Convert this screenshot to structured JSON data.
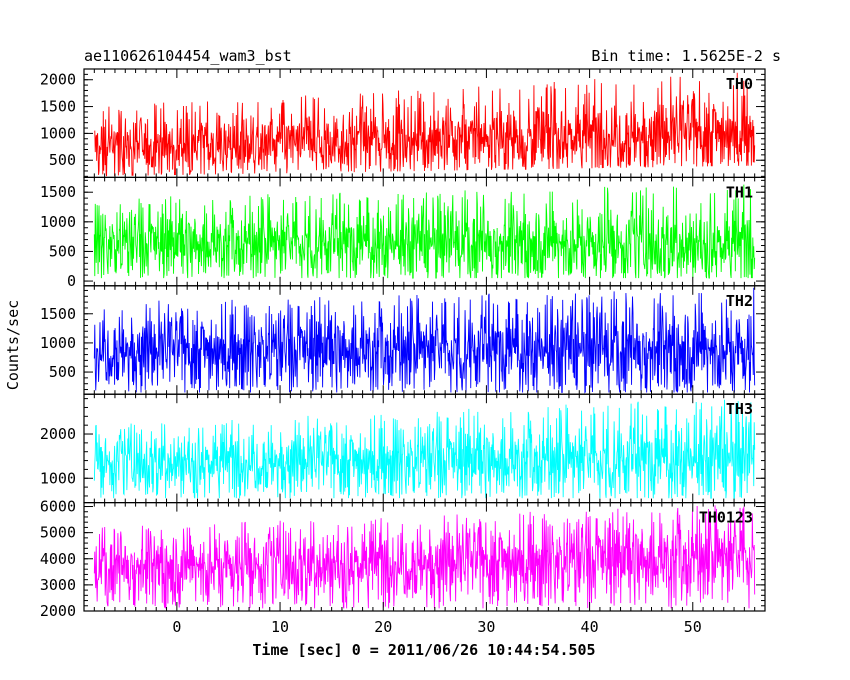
{
  "header": {
    "title": "ae110626104454_wam3_bst",
    "bin_time": "Bin time: 1.5625E-2 s"
  },
  "chart_data": {
    "type": "line",
    "title": "ae110626104454_wam3_bst",
    "xlabel": "Time [sec] 0 = 2011/06/26 10:44:54.505",
    "ylabel": "Counts/sec",
    "xlim": [
      -9,
      57
    ],
    "x_range_data": [
      -8,
      56
    ],
    "xticks": [
      0,
      10,
      20,
      30,
      40,
      50
    ],
    "xticks_text": [
      "0",
      "10",
      "20",
      "30",
      "40",
      "50"
    ],
    "panels": [
      {
        "name": "TH0",
        "color": "#ff0000",
        "ylim": [
          180,
          2200
        ],
        "yticks": [
          500,
          1000,
          1500,
          2000
        ],
        "yticks_text": [
          "500",
          "1000",
          "1500",
          "2000"
        ],
        "trend_x": [
          -8,
          56
        ],
        "trend_mean": [
          750,
          1050
        ],
        "low": [
          200,
          400
        ],
        "high": [
          1500,
          2200
        ]
      },
      {
        "name": "TH1",
        "color": "#00ff00",
        "ylim": [
          -80,
          1750
        ],
        "yticks": [
          0,
          500,
          1000,
          1500
        ],
        "yticks_text": [
          "0",
          "500",
          "1000",
          "1500"
        ],
        "trend_x": [
          -8,
          56
        ],
        "trend_mean": [
          650,
          650
        ],
        "low": [
          50,
          50
        ],
        "high": [
          1400,
          1650
        ]
      },
      {
        "name": "TH2",
        "color": "#0000ff",
        "ylim": [
          120,
          1980
        ],
        "yticks": [
          500,
          1000,
          1500
        ],
        "yticks_text": [
          "500",
          "1000",
          "1500"
        ],
        "trend_x": [
          -8,
          56
        ],
        "trend_mean": [
          900,
          900
        ],
        "low": [
          150,
          150
        ],
        "high": [
          1700,
          1950
        ]
      },
      {
        "name": "TH3",
        "color": "#00ffff",
        "ylim": [
          450,
          2900
        ],
        "yticks": [
          1000,
          2000
        ],
        "yticks_text": [
          "1000",
          "2000"
        ],
        "trend_x": [
          -8,
          56
        ],
        "trend_mean": [
          1400,
          1450
        ],
        "low": [
          550,
          550
        ],
        "high": [
          2200,
          2850
        ]
      },
      {
        "name": "TH0123",
        "color": "#ff00ff",
        "ylim": [
          2000,
          6150
        ],
        "yticks": [
          2000,
          3000,
          4000,
          5000,
          6000
        ],
        "yticks_text": [
          "2000",
          "3000",
          "4000",
          "5000",
          "6000"
        ],
        "trend_x": [
          -8,
          56
        ],
        "trend_mean": [
          3700,
          4100
        ],
        "low": [
          2100,
          2100
        ],
        "high": [
          5200,
          6100
        ]
      }
    ]
  }
}
